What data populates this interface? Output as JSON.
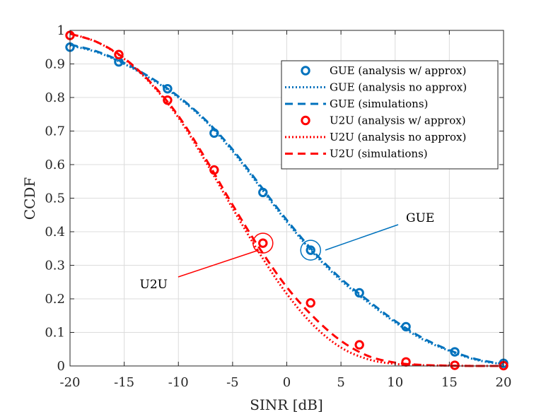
{
  "chart_data": {
    "type": "line",
    "xlabel": "SINR [dB]",
    "ylabel": "CCDF",
    "xlim": [
      -20,
      20
    ],
    "ylim": [
      0,
      1
    ],
    "xticks": [
      -20,
      -15,
      -10,
      -5,
      0,
      5,
      10,
      15,
      20
    ],
    "xtick_labels": [
      "-20",
      "-15",
      "-10",
      "-5",
      "0",
      "5",
      "10",
      "15",
      "20"
    ],
    "yticks": [
      0,
      0.1,
      0.2,
      0.3,
      0.4,
      0.5,
      0.6,
      0.7,
      0.8,
      0.9,
      1
    ],
    "ytick_labels": [
      "0",
      "0.1",
      "0.2",
      "0.3",
      "0.4",
      "0.5",
      "0.6",
      "0.7",
      "0.8",
      "0.9",
      "1"
    ],
    "grid": true,
    "legend_position": "top-right",
    "series": [
      {
        "name": "GUE (analysis w/ approx)",
        "style": "marker",
        "color": "#0072BD",
        "x": [
          -20,
          -15.5,
          -11,
          -6.7,
          -2.2,
          2.2,
          6.7,
          11,
          15.5,
          20
        ],
        "y": [
          0.95,
          0.906,
          0.826,
          0.694,
          0.517,
          0.345,
          0.218,
          0.117,
          0.042,
          0.008
        ]
      },
      {
        "name": "GUE (analysis no approx)",
        "style": "dotted",
        "color": "#0072BD",
        "x": [
          -20,
          -17.5,
          -15,
          -12.5,
          -10,
          -7.5,
          -5,
          -2.5,
          0,
          2.5,
          5,
          7.5,
          10,
          12.5,
          15,
          17.5,
          20
        ],
        "y": [
          0.955,
          0.935,
          0.9,
          0.855,
          0.8,
          0.73,
          0.64,
          0.535,
          0.43,
          0.335,
          0.255,
          0.19,
          0.13,
          0.08,
          0.045,
          0.018,
          0.005
        ]
      },
      {
        "name": "GUE (simulations)",
        "style": "dashed",
        "color": "#0072BD",
        "x": [
          -20,
          -17.5,
          -15,
          -12.5,
          -10,
          -7.5,
          -5,
          -2.5,
          0,
          2.5,
          5,
          7.5,
          10,
          12.5,
          15,
          17.5,
          20
        ],
        "y": [
          0.958,
          0.937,
          0.903,
          0.858,
          0.803,
          0.733,
          0.645,
          0.54,
          0.435,
          0.34,
          0.26,
          0.195,
          0.134,
          0.084,
          0.047,
          0.02,
          0.006
        ]
      },
      {
        "name": "U2U (analysis w/ approx)",
        "style": "marker",
        "color": "#FF0000",
        "x": [
          -20,
          -15.5,
          -11,
          -6.7,
          -2.2,
          2.2,
          6.7,
          11,
          15.5,
          20
        ],
        "y": [
          0.985,
          0.928,
          0.792,
          0.584,
          0.366,
          0.188,
          0.063,
          0.012,
          0.002,
          0.001
        ]
      },
      {
        "name": "U2U (analysis no approx)",
        "style": "dotted",
        "color": "#FF0000",
        "x": [
          -20,
          -17.5,
          -15,
          -12.5,
          -10,
          -7.5,
          -5,
          -2.5,
          0,
          2.5,
          5,
          7.5,
          10,
          12.5,
          15,
          17.5,
          20
        ],
        "y": [
          0.99,
          0.965,
          0.915,
          0.84,
          0.74,
          0.61,
          0.47,
          0.335,
          0.215,
          0.12,
          0.055,
          0.02,
          0.006,
          0.002,
          0.001,
          0,
          0
        ]
      },
      {
        "name": "U2U (simulations)",
        "style": "dashed",
        "color": "#FF0000",
        "x": [
          -20,
          -17.5,
          -15,
          -12.5,
          -10,
          -7.5,
          -5,
          -2.5,
          0,
          2.5,
          5,
          7.5,
          10,
          12.5,
          15,
          17.5,
          20
        ],
        "y": [
          0.99,
          0.965,
          0.917,
          0.843,
          0.745,
          0.618,
          0.48,
          0.35,
          0.235,
          0.145,
          0.075,
          0.03,
          0.01,
          0.003,
          0.001,
          0,
          0
        ]
      }
    ],
    "annotations": [
      {
        "text": "GUE",
        "target_x": 2.2,
        "target_y": 0.345,
        "color": "#0072BD"
      },
      {
        "text": "U2U",
        "target_x": -2.2,
        "target_y": 0.366,
        "color": "#FF0000"
      }
    ]
  }
}
